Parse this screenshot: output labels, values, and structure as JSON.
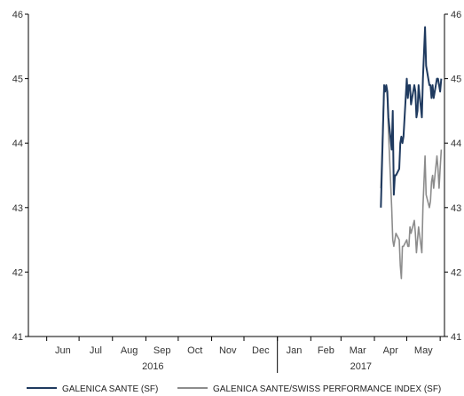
{
  "chart_data": {
    "type": "line",
    "title": "",
    "xlabel": "",
    "ylabel": "",
    "ylim": [
      41,
      46
    ],
    "y_ticks": [
      41,
      42,
      43,
      44,
      45,
      46
    ],
    "month_labels": [
      "Jun",
      "Jul",
      "Aug",
      "Sep",
      "Oct",
      "Nov",
      "Dec",
      "Jan",
      "Feb",
      "Mar",
      "Apr",
      "May"
    ],
    "year_labels": [
      "2016",
      "2017"
    ],
    "x_range": [
      "2016-05-15",
      "2017-06-05"
    ],
    "grid": false,
    "legend_position": "bottom",
    "colors": {
      "series1": "#1f3a5f",
      "series2": "#8c8c8c",
      "axis": "#000000"
    },
    "series": [
      {
        "name": "GALENICA SANTE (SF)",
        "x": [
          "2017-04-07",
          "2017-04-10",
          "2017-04-11",
          "2017-04-12",
          "2017-04-13",
          "2017-04-14",
          "2017-04-17",
          "2017-04-18",
          "2017-04-19",
          "2017-04-20",
          "2017-04-21",
          "2017-04-24",
          "2017-04-25",
          "2017-04-26",
          "2017-04-27",
          "2017-04-28",
          "2017-05-01",
          "2017-05-02",
          "2017-05-03",
          "2017-05-04",
          "2017-05-05",
          "2017-05-08",
          "2017-05-09",
          "2017-05-10",
          "2017-05-11",
          "2017-05-12",
          "2017-05-15",
          "2017-05-16",
          "2017-05-17",
          "2017-05-18",
          "2017-05-19",
          "2017-05-22",
          "2017-05-23",
          "2017-05-24",
          "2017-05-25",
          "2017-05-26",
          "2017-05-29",
          "2017-05-30",
          "2017-05-31",
          "2017-06-01",
          "2017-06-02"
        ],
        "values": [
          43.0,
          44.9,
          44.8,
          44.9,
          44.8,
          44.4,
          43.9,
          44.5,
          43.2,
          43.5,
          43.5,
          43.6,
          44.0,
          44.1,
          44.0,
          44.1,
          45.0,
          44.7,
          44.9,
          44.9,
          44.6,
          44.9,
          44.8,
          44.4,
          44.5,
          44.9,
          44.4,
          45.0,
          45.4,
          45.8,
          45.2,
          44.9,
          44.9,
          44.7,
          44.9,
          44.7,
          45.0,
          45.0,
          44.9,
          44.8,
          45.0
        ]
      },
      {
        "name": "GALENICA SANTE/SWISS PERFORMANCE INDEX (SF)",
        "x": [
          "2017-04-07",
          "2017-04-10",
          "2017-04-11",
          "2017-04-12",
          "2017-04-13",
          "2017-04-14",
          "2017-04-17",
          "2017-04-18",
          "2017-04-19",
          "2017-04-20",
          "2017-04-21",
          "2017-04-24",
          "2017-04-25",
          "2017-04-26",
          "2017-04-27",
          "2017-04-28",
          "2017-05-01",
          "2017-05-02",
          "2017-05-03",
          "2017-05-04",
          "2017-05-05",
          "2017-05-08",
          "2017-05-09",
          "2017-05-10",
          "2017-05-11",
          "2017-05-12",
          "2017-05-15",
          "2017-05-16",
          "2017-05-17",
          "2017-05-18",
          "2017-05-19",
          "2017-05-22",
          "2017-05-23",
          "2017-05-24",
          "2017-05-25",
          "2017-05-26",
          "2017-05-29",
          "2017-05-30",
          "2017-05-31",
          "2017-06-01",
          "2017-06-02"
        ],
        "values": [
          43.3,
          44.9,
          44.8,
          44.9,
          44.7,
          44.2,
          43.0,
          42.5,
          42.4,
          42.5,
          42.6,
          42.5,
          42.1,
          41.9,
          42.4,
          42.4,
          42.5,
          42.4,
          42.4,
          42.7,
          42.6,
          42.8,
          42.6,
          42.3,
          42.5,
          42.7,
          42.3,
          43.0,
          43.4,
          43.8,
          43.2,
          43.0,
          43.1,
          43.4,
          43.5,
          43.3,
          43.8,
          43.6,
          43.3,
          43.6,
          43.9
        ]
      }
    ]
  }
}
